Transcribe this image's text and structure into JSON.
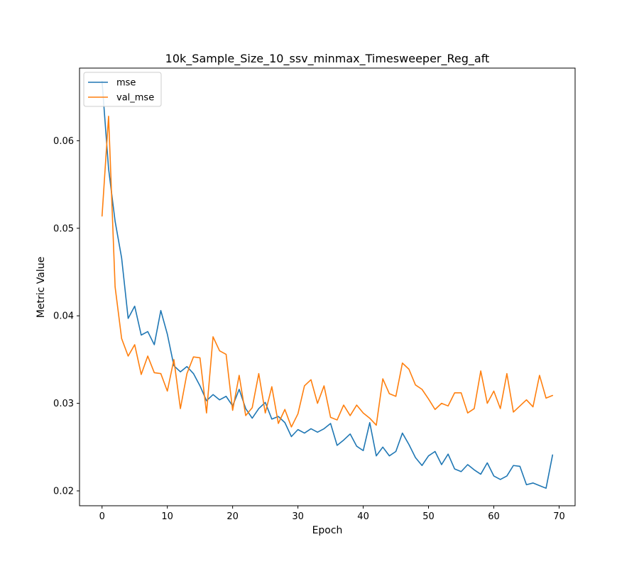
{
  "chart_data": {
    "type": "line",
    "title": "10k_Sample_Size_10_ssv_minmax_Timesweeper_Reg_aft",
    "xlabel": "Epoch",
    "ylabel": "Metric Value",
    "xlim": [
      -3.45,
      72.45
    ],
    "ylim": [
      0.0183,
      0.0683
    ],
    "xticks": [
      0,
      10,
      20,
      30,
      40,
      50,
      60,
      70
    ],
    "yticks": [
      0.02,
      0.03,
      0.04,
      0.05,
      0.06
    ],
    "ytick_labels": [
      "0.02",
      "0.03",
      "0.04",
      "0.05",
      "0.06"
    ],
    "grid": false,
    "legend_position": "top-left",
    "series": [
      {
        "name": "mse",
        "color": "#1f77b4",
        "x": [
          0,
          1,
          2,
          3,
          4,
          5,
          6,
          7,
          8,
          9,
          10,
          11,
          12,
          13,
          14,
          15,
          16,
          17,
          18,
          19,
          20,
          21,
          22,
          23,
          24,
          25,
          26,
          27,
          28,
          29,
          30,
          31,
          32,
          33,
          34,
          35,
          36,
          37,
          38,
          39,
          40,
          41,
          42,
          43,
          44,
          45,
          46,
          47,
          48,
          49,
          50,
          51,
          52,
          53,
          54,
          55,
          56,
          57,
          58,
          59,
          60,
          61,
          62,
          63,
          64,
          65,
          66,
          67,
          68,
          69
        ],
        "values": [
          0.0668,
          0.0568,
          0.0508,
          0.0466,
          0.0397,
          0.0411,
          0.0378,
          0.0382,
          0.0367,
          0.0406,
          0.0379,
          0.0343,
          0.0336,
          0.0342,
          0.0334,
          0.032,
          0.0303,
          0.031,
          0.0304,
          0.0308,
          0.0297,
          0.0316,
          0.0294,
          0.0283,
          0.0294,
          0.0301,
          0.0282,
          0.0285,
          0.0278,
          0.0262,
          0.027,
          0.0266,
          0.0271,
          0.0267,
          0.0271,
          0.0277,
          0.0252,
          0.0258,
          0.0265,
          0.0251,
          0.0246,
          0.0278,
          0.024,
          0.025,
          0.024,
          0.0245,
          0.0266,
          0.0253,
          0.0238,
          0.0229,
          0.024,
          0.0245,
          0.023,
          0.0242,
          0.0225,
          0.0222,
          0.023,
          0.0224,
          0.0219,
          0.0232,
          0.0217,
          0.0213,
          0.0217,
          0.0229,
          0.0228,
          0.0207,
          0.0209,
          0.0206,
          0.0203,
          0.0241
        ]
      },
      {
        "name": "val_mse",
        "color": "#ff7f0e",
        "x": [
          0,
          1,
          2,
          3,
          4,
          5,
          6,
          7,
          8,
          9,
          10,
          11,
          12,
          13,
          14,
          15,
          16,
          17,
          18,
          19,
          20,
          21,
          22,
          23,
          24,
          25,
          26,
          27,
          28,
          29,
          30,
          31,
          32,
          33,
          34,
          35,
          36,
          37,
          38,
          39,
          40,
          41,
          42,
          43,
          44,
          45,
          46,
          47,
          48,
          49,
          50,
          51,
          52,
          53,
          54,
          55,
          56,
          57,
          58,
          59,
          60,
          61,
          62,
          63,
          64,
          65,
          66,
          67,
          68,
          69
        ],
        "values": [
          0.0514,
          0.0628,
          0.0433,
          0.0374,
          0.0354,
          0.0367,
          0.0333,
          0.0354,
          0.0335,
          0.0334,
          0.0314,
          0.035,
          0.0294,
          0.0334,
          0.0353,
          0.0352,
          0.0289,
          0.0376,
          0.036,
          0.0356,
          0.0292,
          0.0332,
          0.0286,
          0.0295,
          0.0334,
          0.0289,
          0.0319,
          0.0277,
          0.0293,
          0.0273,
          0.0288,
          0.032,
          0.0327,
          0.03,
          0.032,
          0.0284,
          0.0281,
          0.0298,
          0.0286,
          0.0298,
          0.0289,
          0.0283,
          0.0275,
          0.0328,
          0.0311,
          0.0308,
          0.0346,
          0.0339,
          0.0321,
          0.0316,
          0.0305,
          0.0293,
          0.03,
          0.0297,
          0.0312,
          0.0312,
          0.0289,
          0.0294,
          0.0337,
          0.03,
          0.0314,
          0.0294,
          0.0334,
          0.029,
          0.0297,
          0.0304,
          0.0296,
          0.0332,
          0.0306,
          0.0309
        ]
      }
    ]
  }
}
